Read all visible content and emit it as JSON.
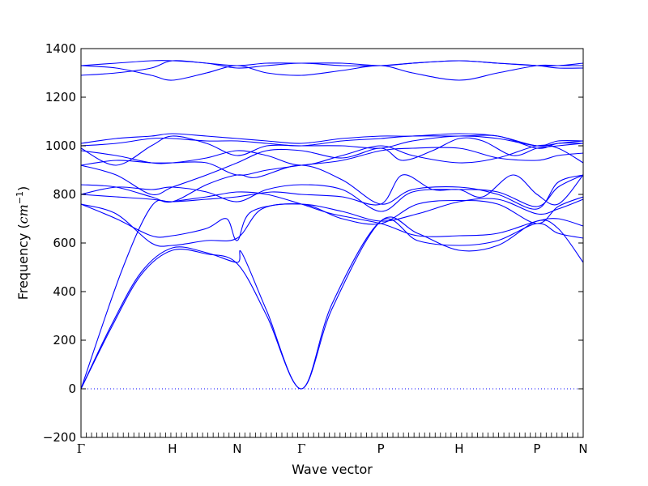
{
  "chart_data": {
    "type": "line",
    "title": "",
    "xlabel": "Wave vector",
    "ylabel_main": "Frequency (",
    "ylabel_unit": "cm",
    "ylabel_exp": "−1",
    "ylabel_close": ")",
    "ylim": [
      -200,
      1400
    ],
    "yticks": [
      -200,
      0,
      200,
      400,
      600,
      800,
      1000,
      1200,
      1400
    ],
    "ytick_labels": [
      "−200",
      "0",
      "200",
      "400",
      "600",
      "800",
      "1000",
      "1200",
      "1400"
    ],
    "xlim": [
      0,
      1
    ],
    "high_symmetry_points": [
      {
        "label": "Γ",
        "x": 0.0
      },
      {
        "label": "H",
        "x": 0.182
      },
      {
        "label": "N",
        "x": 0.311
      },
      {
        "label": "Γ",
        "x": 0.439
      },
      {
        "label": "P",
        "x": 0.597
      },
      {
        "label": "H",
        "x": 0.753
      },
      {
        "label": "P",
        "x": 0.908
      },
      {
        "label": "N",
        "x": 1.0
      }
    ],
    "zero_line": {
      "y": 0,
      "style": "dotted"
    },
    "line_color": "#0000ff",
    "grid": false,
    "bands": [
      [
        [
          0,
          0
        ],
        [
          0.06,
          250
        ],
        [
          0.12,
          470
        ],
        [
          0.182,
          570
        ],
        [
          0.25,
          555
        ],
        [
          0.311,
          515
        ],
        [
          0.37,
          300
        ],
        [
          0.439,
          0
        ],
        [
          0.5,
          330
        ],
        [
          0.597,
          690
        ],
        [
          0.67,
          640
        ],
        [
          0.753,
          570
        ],
        [
          0.83,
          590
        ],
        [
          0.908,
          690
        ],
        [
          0.95,
          660
        ],
        [
          1.0,
          520
        ]
      ],
      [
        [
          0,
          0
        ],
        [
          0.06,
          260
        ],
        [
          0.12,
          480
        ],
        [
          0.182,
          580
        ],
        [
          0.25,
          560
        ],
        [
          0.311,
          520
        ],
        [
          0.32,
          560
        ],
        [
          0.37,
          320
        ],
        [
          0.439,
          0
        ],
        [
          0.5,
          350
        ],
        [
          0.597,
          690
        ],
        [
          0.67,
          610
        ],
        [
          0.753,
          590
        ],
        [
          0.83,
          610
        ],
        [
          0.908,
          680
        ],
        [
          0.95,
          640
        ],
        [
          1.0,
          620
        ]
      ],
      [
        [
          0,
          0
        ],
        [
          0.08,
          480
        ],
        [
          0.14,
          750
        ],
        [
          0.182,
          770
        ],
        [
          0.25,
          790
        ],
        [
          0.311,
          810
        ],
        [
          0.37,
          800
        ],
        [
          0.439,
          760
        ],
        [
          0.5,
          720
        ],
        [
          0.597,
          680
        ],
        [
          0.67,
          630
        ],
        [
          0.753,
          630
        ],
        [
          0.83,
          640
        ],
        [
          0.908,
          690
        ],
        [
          0.95,
          700
        ],
        [
          1.0,
          670
        ]
      ],
      [
        [
          0,
          760
        ],
        [
          0.07,
          700
        ],
        [
          0.14,
          630
        ],
        [
          0.182,
          630
        ],
        [
          0.25,
          660
        ],
        [
          0.29,
          700
        ],
        [
          0.311,
          610
        ],
        [
          0.34,
          730
        ],
        [
          0.439,
          760
        ],
        [
          0.52,
          700
        ],
        [
          0.597,
          680
        ],
        [
          0.67,
          760
        ],
        [
          0.753,
          775
        ],
        [
          0.83,
          760
        ],
        [
          0.908,
          680
        ],
        [
          0.95,
          750
        ],
        [
          1.0,
          790
        ]
      ],
      [
        [
          0,
          760
        ],
        [
          0.07,
          720
        ],
        [
          0.14,
          600
        ],
        [
          0.182,
          590
        ],
        [
          0.25,
          610
        ],
        [
          0.311,
          620
        ],
        [
          0.36,
          740
        ],
        [
          0.439,
          760
        ],
        [
          0.52,
          730
        ],
        [
          0.597,
          690
        ],
        [
          0.67,
          720
        ],
        [
          0.753,
          770
        ],
        [
          0.83,
          780
        ],
        [
          0.908,
          720
        ],
        [
          0.95,
          740
        ],
        [
          1.0,
          780
        ]
      ],
      [
        [
          0,
          800
        ],
        [
          0.07,
          790
        ],
        [
          0.14,
          780
        ],
        [
          0.182,
          770
        ],
        [
          0.25,
          780
        ],
        [
          0.311,
          790
        ],
        [
          0.38,
          810
        ],
        [
          0.439,
          800
        ],
        [
          0.52,
          790
        ],
        [
          0.597,
          760
        ],
        [
          0.64,
          880
        ],
        [
          0.7,
          820
        ],
        [
          0.753,
          820
        ],
        [
          0.8,
          790
        ],
        [
          0.86,
          880
        ],
        [
          0.908,
          800
        ],
        [
          0.95,
          760
        ],
        [
          1.0,
          880
        ]
      ],
      [
        [
          0,
          800
        ],
        [
          0.07,
          830
        ],
        [
          0.14,
          820
        ],
        [
          0.182,
          830
        ],
        [
          0.25,
          810
        ],
        [
          0.311,
          770
        ],
        [
          0.37,
          820
        ],
        [
          0.439,
          840
        ],
        [
          0.52,
          820
        ],
        [
          0.597,
          730
        ],
        [
          0.66,
          810
        ],
        [
          0.753,
          820
        ],
        [
          0.83,
          810
        ],
        [
          0.908,
          750
        ],
        [
          0.95,
          830
        ],
        [
          1.0,
          880
        ]
      ],
      [
        [
          0,
          840
        ],
        [
          0.07,
          830
        ],
        [
          0.14,
          790
        ],
        [
          0.182,
          770
        ],
        [
          0.25,
          840
        ],
        [
          0.311,
          880
        ],
        [
          0.35,
          870
        ],
        [
          0.439,
          920
        ],
        [
          0.52,
          860
        ],
        [
          0.597,
          760
        ],
        [
          0.66,
          820
        ],
        [
          0.753,
          830
        ],
        [
          0.83,
          800
        ],
        [
          0.908,
          740
        ],
        [
          0.95,
          850
        ],
        [
          1.0,
          880
        ]
      ],
      [
        [
          0,
          920
        ],
        [
          0.07,
          940
        ],
        [
          0.14,
          930
        ],
        [
          0.182,
          930
        ],
        [
          0.25,
          930
        ],
        [
          0.311,
          880
        ],
        [
          0.37,
          900
        ],
        [
          0.439,
          920
        ],
        [
          0.52,
          940
        ],
        [
          0.597,
          980
        ],
        [
          0.66,
          990
        ],
        [
          0.753,
          990
        ],
        [
          0.83,
          950
        ],
        [
          0.908,
          940
        ],
        [
          0.95,
          960
        ],
        [
          1.0,
          970
        ]
      ],
      [
        [
          0,
          920
        ],
        [
          0.07,
          880
        ],
        [
          0.14,
          800
        ],
        [
          0.182,
          830
        ],
        [
          0.25,
          880
        ],
        [
          0.311,
          930
        ],
        [
          0.37,
          980
        ],
        [
          0.439,
          980
        ],
        [
          0.52,
          950
        ],
        [
          0.597,
          990
        ],
        [
          0.64,
          940
        ],
        [
          0.7,
          980
        ],
        [
          0.753,
          1030
        ],
        [
          0.8,
          1020
        ],
        [
          0.86,
          960
        ],
        [
          0.908,
          990
        ],
        [
          0.95,
          1000
        ],
        [
          1.0,
          1010
        ]
      ],
      [
        [
          0,
          980
        ],
        [
          0.07,
          960
        ],
        [
          0.14,
          930
        ],
        [
          0.182,
          930
        ],
        [
          0.25,
          950
        ],
        [
          0.311,
          980
        ],
        [
          0.37,
          960
        ],
        [
          0.439,
          920
        ],
        [
          0.52,
          960
        ],
        [
          0.597,
          1000
        ],
        [
          0.66,
          960
        ],
        [
          0.753,
          930
        ],
        [
          0.83,
          950
        ],
        [
          0.908,
          1000
        ],
        [
          0.95,
          990
        ],
        [
          1.0,
          930
        ]
      ],
      [
        [
          0,
          990
        ],
        [
          0.07,
          920
        ],
        [
          0.14,
          1000
        ],
        [
          0.182,
          1040
        ],
        [
          0.25,
          1010
        ],
        [
          0.311,
          960
        ],
        [
          0.37,
          1000
        ],
        [
          0.439,
          1000
        ],
        [
          0.52,
          1000
        ],
        [
          0.597,
          990
        ],
        [
          0.66,
          1020
        ],
        [
          0.753,
          1040
        ],
        [
          0.83,
          1030
        ],
        [
          0.908,
          1000
        ],
        [
          0.95,
          1010
        ],
        [
          1.0,
          1020
        ]
      ],
      [
        [
          0,
          1000
        ],
        [
          0.07,
          1010
        ],
        [
          0.14,
          1030
        ],
        [
          0.182,
          1030
        ],
        [
          0.25,
          1020
        ],
        [
          0.311,
          1020
        ],
        [
          0.37,
          1010
        ],
        [
          0.439,
          1000
        ],
        [
          0.52,
          1020
        ],
        [
          0.597,
          1030
        ],
        [
          0.66,
          1040
        ],
        [
          0.753,
          1040
        ],
        [
          0.83,
          1040
        ],
        [
          0.908,
          990
        ],
        [
          0.95,
          1010
        ],
        [
          1.0,
          1010
        ]
      ],
      [
        [
          0,
          1010
        ],
        [
          0.07,
          1030
        ],
        [
          0.14,
          1040
        ],
        [
          0.182,
          1050
        ],
        [
          0.25,
          1040
        ],
        [
          0.311,
          1030
        ],
        [
          0.37,
          1020
        ],
        [
          0.439,
          1010
        ],
        [
          0.52,
          1030
        ],
        [
          0.597,
          1040
        ],
        [
          0.66,
          1040
        ],
        [
          0.753,
          1050
        ],
        [
          0.83,
          1040
        ],
        [
          0.908,
          1000
        ],
        [
          0.95,
          1020
        ],
        [
          1.0,
          1020
        ]
      ],
      [
        [
          0,
          1290
        ],
        [
          0.07,
          1300
        ],
        [
          0.14,
          1320
        ],
        [
          0.182,
          1350
        ],
        [
          0.25,
          1340
        ],
        [
          0.311,
          1330
        ],
        [
          0.37,
          1340
        ],
        [
          0.439,
          1340
        ],
        [
          0.52,
          1340
        ],
        [
          0.597,
          1330
        ],
        [
          0.66,
          1340
        ],
        [
          0.753,
          1350
        ],
        [
          0.83,
          1340
        ],
        [
          0.908,
          1330
        ],
        [
          0.95,
          1330
        ],
        [
          1.0,
          1340
        ]
      ],
      [
        [
          0,
          1330
        ],
        [
          0.07,
          1320
        ],
        [
          0.14,
          1290
        ],
        [
          0.182,
          1270
        ],
        [
          0.25,
          1300
        ],
        [
          0.311,
          1330
        ],
        [
          0.37,
          1300
        ],
        [
          0.439,
          1290
        ],
        [
          0.52,
          1310
        ],
        [
          0.597,
          1330
        ],
        [
          0.66,
          1300
        ],
        [
          0.753,
          1270
        ],
        [
          0.83,
          1300
        ],
        [
          0.908,
          1330
        ],
        [
          0.95,
          1330
        ],
        [
          1.0,
          1330
        ]
      ],
      [
        [
          0,
          1330
        ],
        [
          0.07,
          1340
        ],
        [
          0.14,
          1350
        ],
        [
          0.182,
          1350
        ],
        [
          0.25,
          1340
        ],
        [
          0.311,
          1320
        ],
        [
          0.37,
          1330
        ],
        [
          0.439,
          1340
        ],
        [
          0.52,
          1330
        ],
        [
          0.597,
          1330
        ],
        [
          0.66,
          1340
        ],
        [
          0.753,
          1350
        ],
        [
          0.83,
          1340
        ],
        [
          0.908,
          1330
        ],
        [
          0.95,
          1320
        ],
        [
          1.0,
          1320
        ]
      ]
    ]
  }
}
